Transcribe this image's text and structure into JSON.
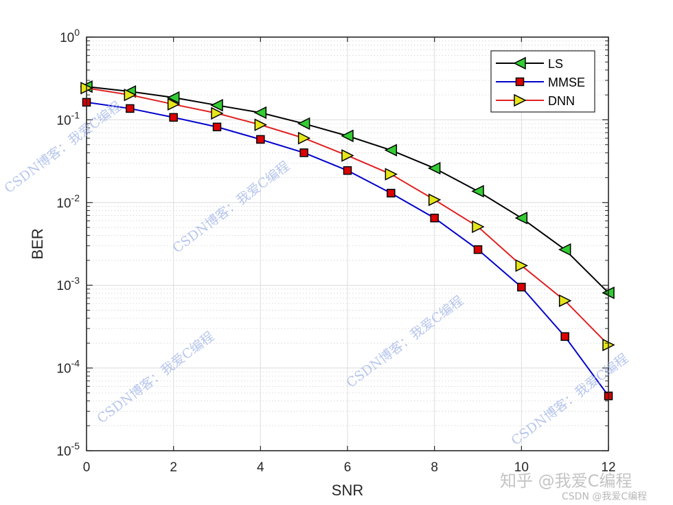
{
  "chart_data": {
    "type": "line",
    "title": "",
    "xlabel": "SNR",
    "ylabel": "BER",
    "xscale": "linear",
    "yscale": "log",
    "xlim": [
      0,
      12
    ],
    "ylim": [
      1e-05,
      1
    ],
    "grid": true,
    "minor_grid": true,
    "legend_position": "upper right",
    "x_ticks": [
      "0",
      "2",
      "4",
      "6",
      "8",
      "10",
      "12"
    ],
    "y_ticks": [
      {
        "base": "10",
        "exp": "0"
      },
      {
        "base": "10",
        "exp": "-1"
      },
      {
        "base": "10",
        "exp": "-2"
      },
      {
        "base": "10",
        "exp": "-3"
      },
      {
        "base": "10",
        "exp": "-4"
      },
      {
        "base": "10",
        "exp": "-5"
      }
    ],
    "x": [
      0,
      1,
      2,
      3,
      4,
      5,
      6,
      7,
      8,
      9,
      10,
      11,
      12
    ],
    "series": [
      {
        "name": "LS",
        "line_color": "#000000",
        "marker": "triangle-left",
        "marker_fill": "#33cc33",
        "values": [
          0.252,
          0.22,
          0.186,
          0.15,
          0.122,
          0.09,
          0.064,
          0.043,
          0.026,
          0.0137,
          0.0065,
          0.0027,
          0.00081
        ]
      },
      {
        "name": "MMSE",
        "line_color": "#0000cc",
        "marker": "square",
        "marker_fill": "#dd0000",
        "values": [
          0.163,
          0.137,
          0.107,
          0.082,
          0.058,
          0.04,
          0.0244,
          0.013,
          0.0065,
          0.0027,
          0.00095,
          0.00024,
          4.6e-05
        ]
      },
      {
        "name": "DNN",
        "line_color": "#e02020",
        "marker": "triangle-right",
        "marker_fill": "#e6e619",
        "values": [
          0.242,
          0.2,
          0.154,
          0.12,
          0.087,
          0.06,
          0.037,
          0.022,
          0.0108,
          0.0051,
          0.00173,
          0.00065,
          0.00019
        ]
      }
    ]
  },
  "watermarks": {
    "blog": "CSDN博客：我爱C编程",
    "zhihu": "知乎 @我爱C编程",
    "csdn": "CSDN @我爱C编程"
  }
}
